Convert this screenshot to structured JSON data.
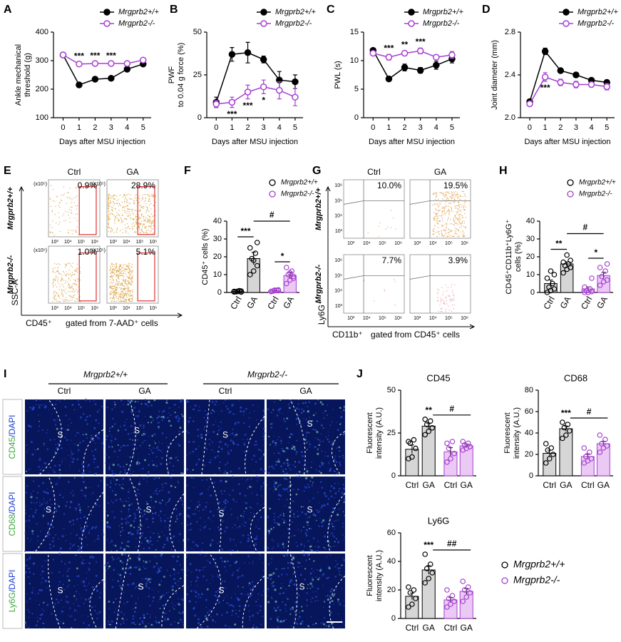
{
  "chart_data": [
    {
      "type": "line",
      "label": "A",
      "y_label": [
        "Ankle mechanical",
        "threshold (g)"
      ],
      "x_label": "Days after MSU injection",
      "x": [
        0,
        1,
        2,
        3,
        4,
        5
      ],
      "xlim": [
        -0.6,
        5.5
      ],
      "xticks": [
        0,
        1,
        2,
        3,
        4,
        5
      ],
      "ylim": [
        100,
        400
      ],
      "yticks": [
        100,
        200,
        300,
        400
      ],
      "series": [
        {
          "name": "Mrgprb2+/+",
          "color": "#000000",
          "marker": "filled",
          "values": [
            320,
            215,
            235,
            238,
            270,
            288
          ],
          "errors": [
            5,
            8,
            6,
            5,
            6,
            6
          ]
        },
        {
          "name": "Mrgprb2-/-",
          "color": "#a640d0",
          "marker": "open",
          "values": [
            320,
            288,
            290,
            290,
            290,
            302
          ],
          "errors": [
            4,
            6,
            5,
            5,
            5,
            5
          ]
        }
      ],
      "significance": [
        null,
        "***",
        "***",
        "***",
        null,
        null
      ]
    },
    {
      "type": "line",
      "label": "B",
      "y_label": [
        "PWF",
        "to 0.04 g force (%)"
      ],
      "x_label": "Days after MSU injection",
      "x": [
        0,
        1,
        2,
        3,
        4,
        5
      ],
      "xlim": [
        -0.6,
        5.5
      ],
      "xticks": [
        0,
        1,
        2,
        3,
        4,
        5
      ],
      "ylim": [
        0,
        50
      ],
      "yticks": [
        0,
        25,
        50
      ],
      "series": [
        {
          "name": "Mrgprb2+/+",
          "color": "#000000",
          "marker": "filled",
          "values": [
            9,
            37,
            38,
            34,
            22,
            21
          ],
          "errors": [
            3,
            4,
            6,
            2,
            5,
            4
          ]
        },
        {
          "name": "Mrgprb2-/-",
          "color": "#a640d0",
          "marker": "open",
          "values": [
            8,
            9,
            15,
            18,
            16,
            12
          ],
          "errors": [
            2,
            3,
            4,
            4,
            5,
            5
          ]
        }
      ],
      "significance": [
        null,
        "***",
        "***",
        "*",
        null,
        null
      ]
    },
    {
      "type": "line",
      "label": "C",
      "y_label": [
        "PWL (s)"
      ],
      "x_label": "Days after MSU injection",
      "x": [
        0,
        1,
        2,
        3,
        4,
        5
      ],
      "xlim": [
        -0.6,
        5.5
      ],
      "xticks": [
        0,
        1,
        2,
        3,
        4,
        5
      ],
      "ylim": [
        0,
        15
      ],
      "yticks": [
        0,
        5,
        10,
        15
      ],
      "series": [
        {
          "name": "Mrgprb2+/+",
          "color": "#000000",
          "marker": "filled",
          "values": [
            11.8,
            6.8,
            8.8,
            8.3,
            9.2,
            10.3
          ],
          "errors": [
            0.3,
            0.4,
            0.6,
            0.5,
            0.7,
            0.7
          ]
        },
        {
          "name": "Mrgprb2-/-",
          "color": "#a640d0",
          "marker": "open",
          "values": [
            11.3,
            10.6,
            11.3,
            11.7,
            10.6,
            11.0
          ],
          "errors": [
            0.4,
            0.5,
            0.4,
            0.5,
            0.4,
            0.6
          ]
        }
      ],
      "significance": [
        null,
        "***",
        "**",
        "***",
        null,
        null
      ]
    },
    {
      "type": "line",
      "label": "D",
      "y_label": [
        "Joint diameter (mm)"
      ],
      "x_label": "Days after MSU injection",
      "x": [
        0,
        1,
        2,
        3,
        4,
        5
      ],
      "xlim": [
        -0.6,
        5.5
      ],
      "xticks": [
        0,
        1,
        2,
        3,
        4,
        5
      ],
      "ylim": [
        2,
        2.8
      ],
      "yticks": [
        {
          "value": 2,
          "label": "2.0"
        },
        2.4,
        2.8
      ],
      "series": [
        {
          "name": "Mrgprb2+/+",
          "color": "#000000",
          "marker": "filled",
          "values": [
            2.15,
            2.62,
            2.44,
            2.4,
            2.35,
            2.33
          ],
          "errors": [
            0.02,
            0.03,
            0.02,
            0.02,
            0.02,
            0.02
          ]
        },
        {
          "name": "Mrgprb2-/-",
          "color": "#a640d0",
          "marker": "open",
          "values": [
            2.13,
            2.38,
            2.33,
            2.31,
            2.31,
            2.29
          ],
          "errors": [
            0.02,
            0.04,
            0.03,
            0.03,
            0.02,
            0.03
          ]
        }
      ],
      "significance": [
        null,
        "***",
        null,
        null,
        null,
        null
      ]
    },
    {
      "type": "bar",
      "label": "F",
      "y_label": [
        "CD45⁺ cells (%)"
      ],
      "categories": [
        "Ctrl",
        "GA",
        "Ctrl",
        "GA"
      ],
      "values": [
        0.6,
        19,
        0.9,
        9.5
      ],
      "errors": [
        0.2,
        3.5,
        0.2,
        1.8
      ],
      "points": [
        [
          0.3,
          0.5,
          0.8,
          0.4,
          1,
          0.6,
          0.2,
          0.7
        ],
        [
          10,
          12,
          15,
          19,
          22,
          25,
          28,
          18
        ],
        [
          0.5,
          1,
          1.5,
          0.8,
          1.2,
          0.6,
          1,
          1.3
        ],
        [
          5,
          7,
          9,
          10,
          12,
          14,
          8,
          11
        ]
      ],
      "colors": [
        "#d6d6d6",
        "#d6d6d6",
        "#ebc9f5",
        "#ebc9f5"
      ],
      "point_colors": [
        "#000000",
        "#000000",
        "#a640d0",
        "#a640d0"
      ],
      "ylim": [
        0,
        40
      ],
      "yticks": [
        0,
        10,
        20,
        30,
        40
      ],
      "sig_wt": "***",
      "sig_ko": "*",
      "sig_ga": "#",
      "legend": [
        {
          "name": "Mrgprb2+/+",
          "color": "#000000"
        },
        {
          "name": "Mrgprb2-/-",
          "color": "#a640d0"
        }
      ]
    },
    {
      "type": "bar",
      "label": "H",
      "y_label": [
        "CD45⁺CD11b⁺Ly6G⁺",
        "cells (%)"
      ],
      "categories": [
        "Ctrl",
        "GA",
        "Ctrl",
        "GA"
      ],
      "values": [
        5,
        16,
        2,
        9.5
      ],
      "errors": [
        2,
        1.2,
        1.1,
        1.8
      ],
      "points": [
        [
          0,
          1,
          2,
          3,
          5,
          8,
          10,
          12
        ],
        [
          11,
          13,
          14,
          15,
          16,
          17,
          18,
          21
        ],
        [
          0,
          0,
          0.5,
          1,
          2,
          3,
          8
        ],
        [
          4,
          6,
          7,
          9,
          12,
          14,
          16
        ]
      ],
      "colors": [
        "#d6d6d6",
        "#d6d6d6",
        "#ebc9f5",
        "#ebc9f5"
      ],
      "point_colors": [
        "#000000",
        "#000000",
        "#a640d0",
        "#a640d0"
      ],
      "ylim": [
        0,
        40
      ],
      "yticks": [
        0,
        10,
        20,
        30,
        40
      ],
      "sig_wt": "**",
      "sig_ko": "*",
      "sig_ga": "#",
      "legend": [
        {
          "name": "Mrgprb2+/+",
          "color": "#000000"
        },
        {
          "name": "Mrgprb2-/-",
          "color": "#a640d0"
        }
      ]
    },
    {
      "type": "bar",
      "label": "J",
      "title": "CD45",
      "y_label": [
        "Fluorescent",
        "intensity (A.U.)"
      ],
      "categories": [
        "Ctrl",
        "GA",
        "Ctrl",
        "GA"
      ],
      "values": [
        15.5,
        29,
        14,
        17.5
      ],
      "errors": [
        2.5,
        1.5,
        2.5,
        1
      ],
      "points": [
        [
          10,
          11,
          16,
          19,
          21,
          20
        ],
        [
          24,
          26,
          28,
          30,
          32,
          33
        ],
        [
          8,
          10,
          13,
          16,
          20,
          19
        ],
        [
          15,
          16,
          17,
          18,
          19,
          20
        ]
      ],
      "colors": [
        "#d6d6d6",
        "#d6d6d6",
        "#ebc9f5",
        "#ebc9f5"
      ],
      "point_colors": [
        "#000000",
        "#000000",
        "#a640d0",
        "#a640d0"
      ],
      "ylim": [
        0,
        50
      ],
      "yticks": [
        0,
        25,
        50
      ],
      "sig_wt": "**",
      "sig_ga": "#"
    },
    {
      "type": "bar",
      "title": "CD68",
      "y_label": [
        "Fluorescent",
        "intensity (A.U.)"
      ],
      "categories": [
        "Ctrl",
        "GA",
        "Ctrl",
        "GA"
      ],
      "values": [
        21,
        44,
        18,
        30
      ],
      "errors": [
        3,
        2.5,
        2.5,
        2.3
      ],
      "points": [
        [
          12,
          16,
          20,
          24,
          26,
          30
        ],
        [
          35,
          38,
          42,
          45,
          48,
          50
        ],
        [
          12,
          14,
          16,
          18,
          22,
          26
        ],
        [
          22,
          26,
          28,
          30,
          34,
          38
        ]
      ],
      "colors": [
        "#d6d6d6",
        "#d6d6d6",
        "#ebc9f5",
        "#ebc9f5"
      ],
      "point_colors": [
        "#000000",
        "#000000",
        "#a640d0",
        "#a640d0"
      ],
      "ylim": [
        0,
        80
      ],
      "yticks": [
        0,
        20,
        40,
        60,
        80
      ],
      "sig_wt": "***",
      "sig_ga": "#"
    },
    {
      "type": "bar",
      "title": "Ly6G",
      "y_label": [
        "Fluorescent",
        "intensity (A.U.)"
      ],
      "categories": [
        "Ctrl",
        "GA",
        "Ctrl",
        "GA"
      ],
      "values": [
        15.5,
        34,
        13,
        19
      ],
      "errors": [
        2.3,
        3,
        1.8,
        2
      ],
      "points": [
        [
          8,
          10,
          14,
          18,
          20,
          22
        ],
        [
          25,
          28,
          32,
          35,
          38,
          45
        ],
        [
          8,
          10,
          12,
          14,
          16,
          20
        ],
        [
          12,
          15,
          18,
          20,
          22,
          26
        ]
      ],
      "colors": [
        "#d6d6d6",
        "#d6d6d6",
        "#ebc9f5",
        "#ebc9f5"
      ],
      "point_colors": [
        "#000000",
        "#000000",
        "#a640d0",
        "#a640d0"
      ],
      "ylim": [
        0,
        60
      ],
      "yticks": [
        0,
        20,
        40,
        60
      ],
      "sig_wt": "***",
      "sig_ga": "##",
      "legend": [
        {
          "name": "Mrgprb2+/+",
          "color": "#000000"
        },
        {
          "name": "Mrgprb2-/-",
          "color": "#a640d0"
        }
      ]
    }
  ],
  "flow_e": {
    "label": "E",
    "columns": [
      "Ctrl",
      "GA"
    ],
    "rows": [
      "Mrgprb2+/+",
      "Mrgprb2-/-"
    ],
    "percents": [
      [
        "0.9%",
        "28.9%"
      ],
      [
        "1.0%",
        "5.1%"
      ]
    ],
    "y_label": "SSC-A",
    "x_label": "CD45⁺",
    "gate_note": "gated from 7-AAD⁺ cells",
    "y_scale": "(x10⁵)",
    "xticks": [
      "10³",
      "10⁴",
      "10⁵",
      "10⁶"
    ]
  },
  "flow_g": {
    "label": "G",
    "columns": [
      "Ctrl",
      "GA"
    ],
    "rows": [
      "Mrgprb2+/+",
      "Mrgprb2-/-"
    ],
    "percents": [
      [
        "10.0%",
        "19.5%"
      ],
      [
        "7.7%",
        "3.9%"
      ]
    ],
    "y_label": "Ly6G⁺",
    "x_label": "CD11b⁺",
    "gate_note": "gated from CD45⁺ cells",
    "xticks": [
      "10³",
      "10⁴",
      "10⁵",
      "10⁶"
    ],
    "yticks": [
      "10³",
      "10⁴",
      "10⁵",
      "10⁶"
    ]
  },
  "histology": {
    "label": "I",
    "groups": [
      "Mrgprb2+/+",
      "Mrgprb2-/-"
    ],
    "columns": [
      "Ctrl",
      "GA",
      "Ctrl",
      "GA"
    ],
    "rows": [
      {
        "marker": "CD45",
        "counterstain": "/DAPI"
      },
      {
        "marker": "CD68",
        "counterstain": "/DAPI"
      },
      {
        "marker": "Ly6G",
        "counterstain": "/DAPI"
      }
    ],
    "region_label": "S"
  }
}
